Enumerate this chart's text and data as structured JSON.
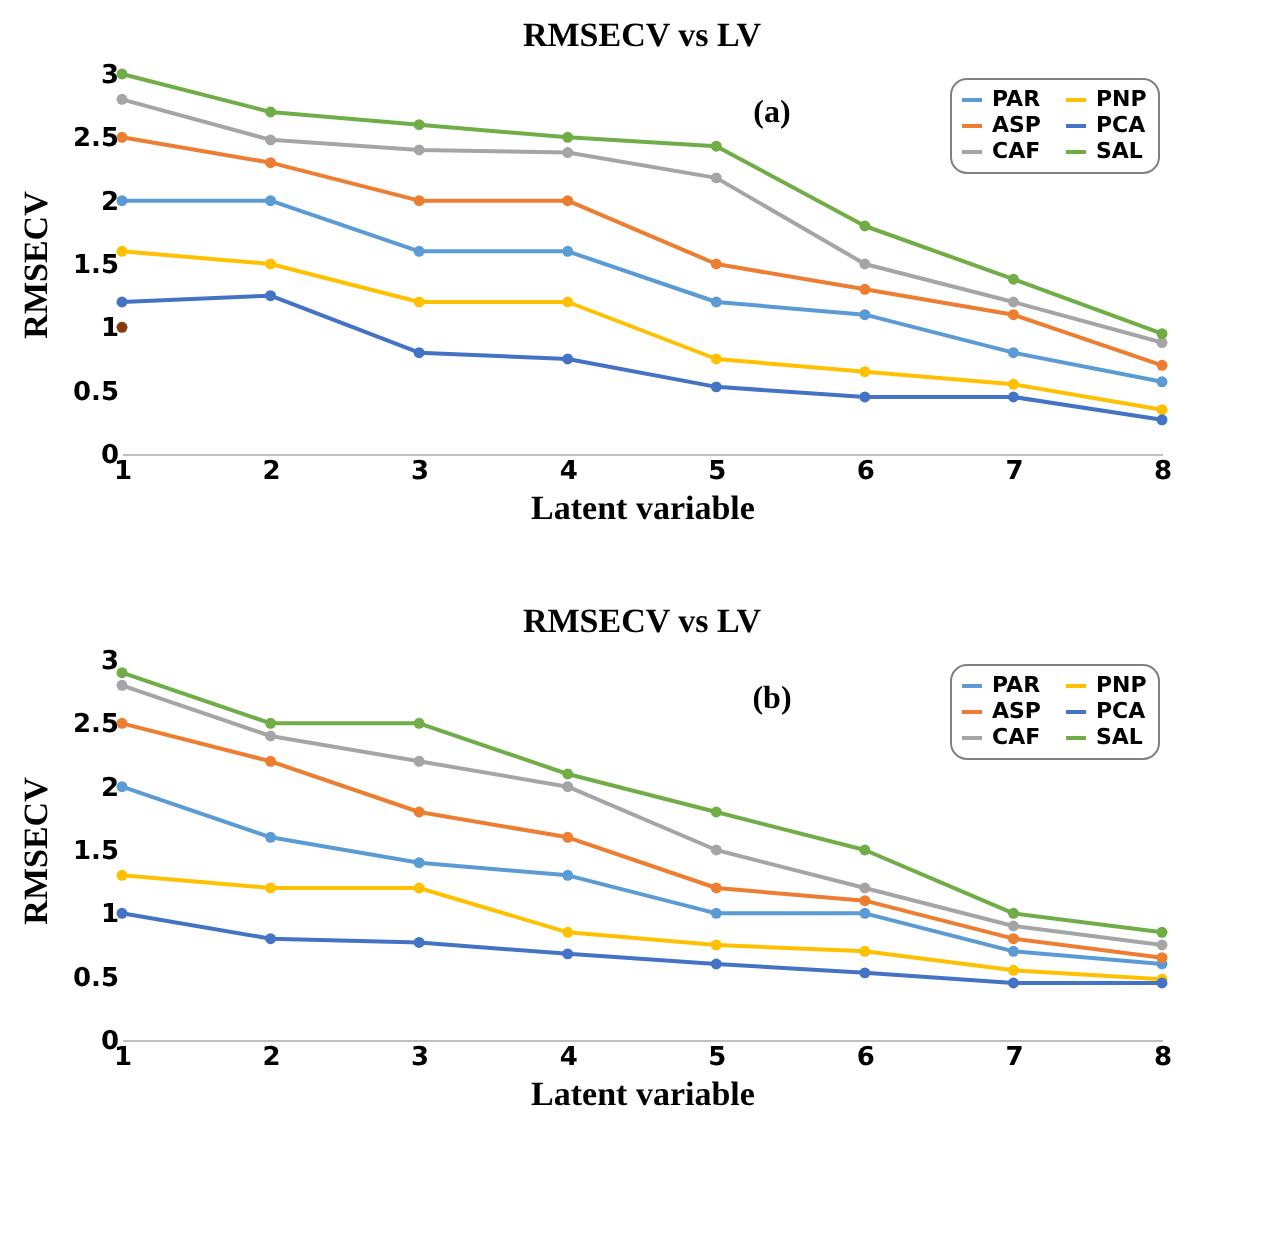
{
  "chart_data": [
    {
      "type": "line",
      "title": "RMSECV vs LV",
      "xlabel": "Latent variable",
      "ylabel": "RMSECV",
      "annotations": [
        "(a)"
      ],
      "categories": [
        "1",
        "2",
        "3",
        "4",
        "5",
        "6",
        "7",
        "8"
      ],
      "ylim": [
        0,
        3
      ],
      "yticks": [
        0,
        0.5,
        1,
        1.5,
        2,
        2.5,
        3
      ],
      "grid": false,
      "legend": "top right",
      "marker": "circle",
      "line_style": "solid",
      "series": [
        {
          "name": "PAR",
          "color": "#5b9bd5",
          "values": [
            2.0,
            2.0,
            1.6,
            1.6,
            1.2,
            1.1,
            0.8,
            0.57
          ]
        },
        {
          "name": "ASP",
          "color": "#ed7d31",
          "values": [
            2.5,
            2.3,
            2.0,
            2.0,
            1.5,
            1.3,
            1.1,
            0.7
          ]
        },
        {
          "name": "CAF",
          "color": "#a5a5a5",
          "values": [
            2.8,
            2.48,
            2.4,
            2.38,
            2.18,
            1.5,
            1.2,
            0.88
          ]
        },
        {
          "name": "PNP",
          "color": "#ffc000",
          "values": [
            1.6,
            1.5,
            1.2,
            1.2,
            0.75,
            0.65,
            0.55,
            0.35
          ]
        },
        {
          "name": "PCA",
          "color": "#4472c4",
          "values": [
            1.2,
            1.25,
            0.8,
            0.75,
            0.53,
            0.45,
            0.45,
            0.27
          ]
        },
        {
          "name": "SAL",
          "color": "#70ad47",
          "values": [
            3.0,
            2.7,
            2.6,
            2.5,
            2.43,
            1.8,
            1.38,
            0.95
          ]
        },
        {
          "type": "scatter",
          "color": "#843c0c",
          "x": [
            "1"
          ],
          "values": [
            1.0
          ]
        }
      ]
    },
    {
      "type": "line",
      "title": "RMSECV vs LV",
      "xlabel": "Latent variable",
      "ylabel": "RMSECV",
      "annotations": [
        "(b)"
      ],
      "categories": [
        "1",
        "2",
        "3",
        "4",
        "5",
        "6",
        "7",
        "8"
      ],
      "ylim": [
        0,
        3
      ],
      "yticks": [
        0,
        0.5,
        1,
        1.5,
        2,
        2.5,
        3
      ],
      "grid": false,
      "legend": "top right",
      "marker": "circle",
      "line_style": "solid",
      "series": [
        {
          "name": "PAR",
          "color": "#5b9bd5",
          "values": [
            2.0,
            1.6,
            1.4,
            1.3,
            1.0,
            1.0,
            0.7,
            0.6
          ]
        },
        {
          "name": "ASP",
          "color": "#ed7d31",
          "values": [
            2.5,
            2.2,
            1.8,
            1.6,
            1.2,
            1.1,
            0.8,
            0.65
          ]
        },
        {
          "name": "CAF",
          "color": "#a5a5a5",
          "values": [
            2.8,
            2.4,
            2.2,
            2.0,
            1.5,
            1.2,
            0.9,
            0.75
          ]
        },
        {
          "name": "PNP",
          "color": "#ffc000",
          "values": [
            1.3,
            1.2,
            1.2,
            0.85,
            0.75,
            0.7,
            0.55,
            0.48
          ]
        },
        {
          "name": "PCA",
          "color": "#4472c4",
          "values": [
            1.0,
            0.8,
            0.77,
            0.68,
            0.6,
            0.53,
            0.45,
            0.45
          ]
        },
        {
          "name": "SAL",
          "color": "#70ad47",
          "values": [
            2.9,
            2.5,
            2.5,
            2.1,
            1.8,
            1.5,
            1.0,
            0.85
          ]
        }
      ]
    }
  ]
}
